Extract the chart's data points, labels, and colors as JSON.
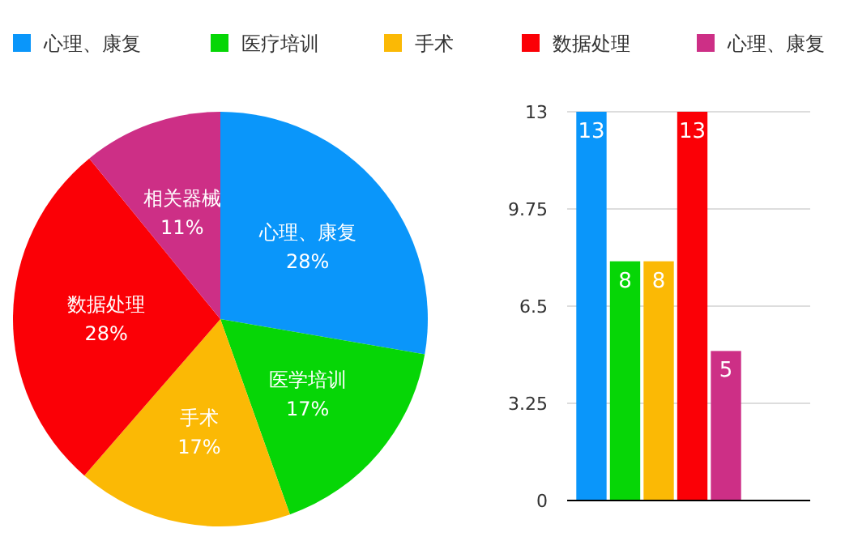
{
  "chart_data": [
    {
      "type": "pie",
      "categories": [
        "心理、康复",
        "医学培训",
        "手术",
        "数据处理",
        "相关器械"
      ],
      "values": [
        28,
        17,
        17,
        28,
        11
      ],
      "colors": [
        "#0a96fa",
        "#06d606",
        "#fbb905",
        "#fb0006",
        "#cd2f86"
      ],
      "value_labels": [
        "28%",
        "17%",
        "17%",
        "28%",
        "11%"
      ]
    },
    {
      "type": "bar",
      "categories": [
        null
      ],
      "series": [
        {
          "name": "心理、康复",
          "color": "#0a96fa",
          "values": [
            13
          ]
        },
        {
          "name": "医疗培训",
          "color": "#06d606",
          "values": [
            8
          ]
        },
        {
          "name": "手术",
          "color": "#fbb905",
          "values": [
            8
          ]
        },
        {
          "name": "数据处理",
          "color": "#fb0006",
          "values": [
            13
          ]
        },
        {
          "name": "心理、康复",
          "color": "#cd2f86",
          "values": [
            5
          ]
        }
      ],
      "ylim": [
        0,
        13
      ],
      "yticks": [
        0,
        3.25,
        6.5,
        9.75,
        13
      ],
      "grid": "y",
      "legend": "top",
      "data_labels": true
    }
  ]
}
